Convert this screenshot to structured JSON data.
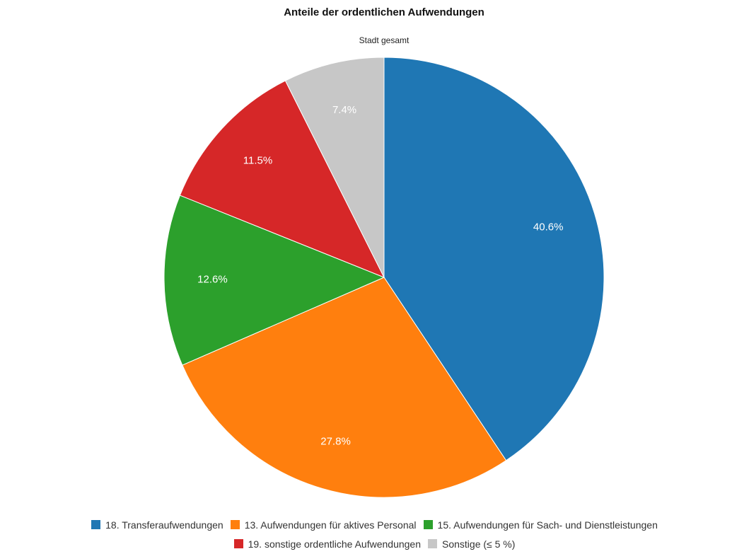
{
  "chart_data": {
    "type": "pie",
    "title": "Anteile der ordentlichen Aufwendungen",
    "subtitle": "Stadt gesamt",
    "categories": [
      "18. Transferaufwendungen",
      "13. Aufwendungen für aktives Personal",
      "15. Aufwendungen für Sach- und Dienstleistungen",
      "19. sonstige ordentliche Aufwendungen",
      "Sonstige (≤ 5 %)"
    ],
    "values": [
      40.6,
      27.8,
      12.6,
      11.5,
      7.4
    ],
    "value_labels": [
      "40.6%",
      "27.8%",
      "12.6%",
      "11.5%",
      "7.4%"
    ],
    "colors": [
      "#1f77b4",
      "#ff7f0e",
      "#2ca02c",
      "#d62728",
      "#c7c7c7"
    ]
  }
}
